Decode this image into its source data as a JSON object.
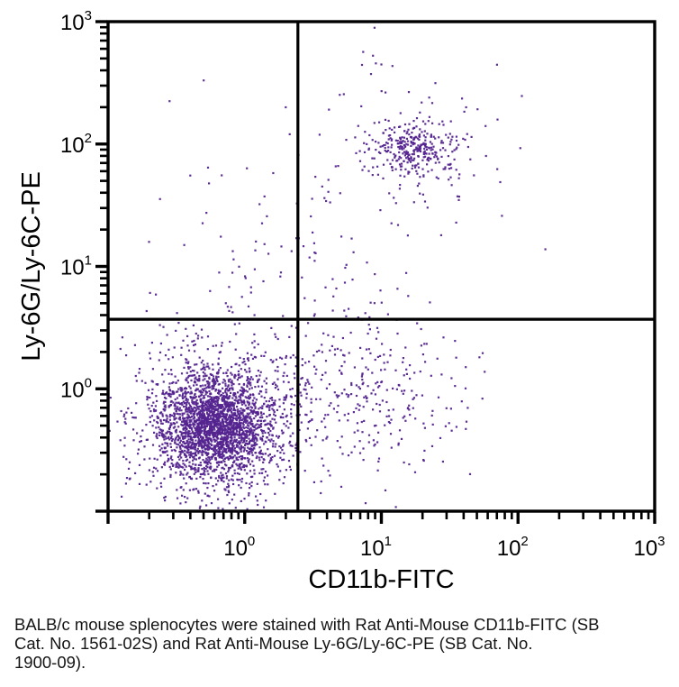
{
  "figure": {
    "caption": "BALB/c mouse splenocytes were stained with Rat Anti-Mouse CD11b-FITC (SB\nCat. No. 1561-02S) and Rat Anti-Mouse Ly-6G/Ly-6C-PE (SB Cat. No.\n1900-09)."
  },
  "chart_data": {
    "type": "scatter",
    "subtype": "flow-cytometry-dot-plot",
    "title": "",
    "xlabel": "CD11b-FITC",
    "ylabel": "Ly-6G/Ly-6C-PE",
    "x_scale": "log",
    "y_scale": "log",
    "xlim": [
      0.1,
      1000
    ],
    "ylim": [
      0.1,
      1000
    ],
    "labeled_tick_exponents": [
      0,
      1,
      2,
      3
    ],
    "axis_decade_range": [
      -1,
      3
    ],
    "grid": false,
    "quadrant_gate": {
      "x": 2.45,
      "y": 3.7
    },
    "dot_color": "#54248f",
    "axis_color": "#000000",
    "populations": [
      {
        "name": "lymphocytes-core",
        "center_log": [
          -0.22,
          -0.3
        ],
        "sd_log": [
          0.2,
          0.2
        ],
        "count": 1900
      },
      {
        "name": "lymphocytes-halo",
        "center_log": [
          -0.19,
          -0.27
        ],
        "sd_log": [
          0.34,
          0.34
        ],
        "count": 1050
      },
      {
        "name": "granulocytes-core",
        "center_log": [
          1.23,
          1.97
        ],
        "sd_log": [
          0.15,
          0.1
        ],
        "count": 270
      },
      {
        "name": "granulocytes-halo",
        "center_log": [
          1.22,
          1.93
        ],
        "sd_log": [
          0.3,
          0.33
        ],
        "count": 130
      },
      {
        "name": "monocytes",
        "center_log": [
          0.95,
          -0.08
        ],
        "sd_log": [
          0.34,
          0.34
        ],
        "count": 270
      },
      {
        "name": "upper-left-scatter",
        "center_log": [
          0.02,
          0.85
        ],
        "sd_log": [
          0.3,
          0.62
        ],
        "count": 65
      },
      {
        "name": "mid-trail",
        "center_log": [
          0.72,
          0.7
        ],
        "sd_log": [
          0.28,
          0.5
        ],
        "count": 58
      }
    ],
    "outliers_log": [
      [
        0.95,
        2.95
      ],
      [
        1.0,
        2.65
      ],
      [
        1.35,
        2.38
      ],
      [
        2.2,
        1.14
      ],
      [
        1.85,
        2.2
      ],
      [
        -0.55,
        2.35
      ],
      [
        -0.3,
        2.52
      ],
      [
        0.3,
        2.3
      ],
      [
        1.62,
        2.3
      ],
      [
        0.88,
        2.1
      ],
      [
        -0.62,
        1.55
      ],
      [
        -0.7,
        1.2
      ]
    ]
  }
}
